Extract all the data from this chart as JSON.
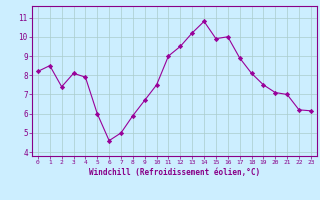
{
  "x": [
    0,
    1,
    2,
    3,
    4,
    5,
    6,
    7,
    8,
    9,
    10,
    11,
    12,
    13,
    14,
    15,
    16,
    17,
    18,
    19,
    20,
    21,
    22,
    23
  ],
  "y": [
    8.2,
    8.5,
    7.4,
    8.1,
    7.9,
    6.0,
    4.6,
    5.0,
    5.9,
    6.7,
    7.5,
    9.0,
    9.5,
    10.2,
    10.8,
    9.9,
    10.0,
    8.9,
    8.1,
    7.5,
    7.1,
    7.0,
    6.2,
    6.15
  ],
  "line_color": "#990099",
  "marker": "D",
  "marker_size": 2.2,
  "bg_color": "#cceeff",
  "grid_color": "#aacccc",
  "xlabel": "Windchill (Refroidissement éolien,°C)",
  "ylabel": "",
  "ylim": [
    3.8,
    11.6
  ],
  "xlim": [
    -0.5,
    23.5
  ],
  "yticks": [
    4,
    5,
    6,
    7,
    8,
    9,
    10,
    11
  ],
  "xticks": [
    0,
    1,
    2,
    3,
    4,
    5,
    6,
    7,
    8,
    9,
    10,
    11,
    12,
    13,
    14,
    15,
    16,
    17,
    18,
    19,
    20,
    21,
    22,
    23
  ],
  "tick_color": "#880088",
  "label_color": "#880088",
  "spine_color": "#880088"
}
